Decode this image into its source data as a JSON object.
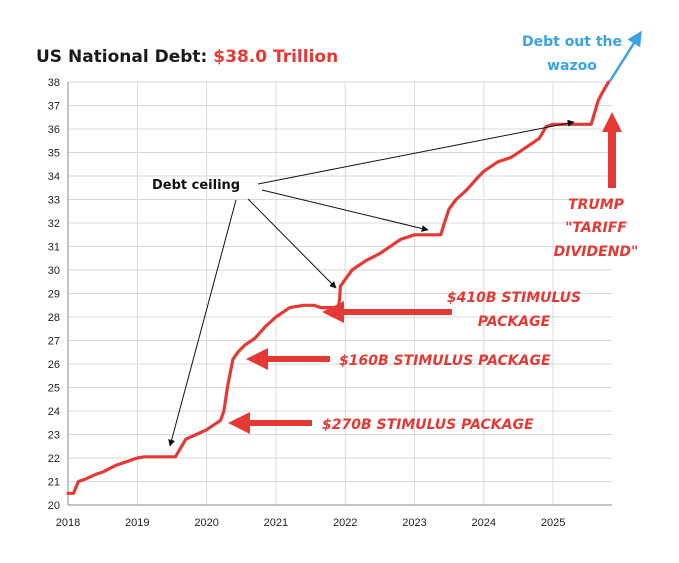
{
  "chart_data": {
    "type": "line",
    "title": "US National Debt: ",
    "title_value": "$38.0 Trillion",
    "xlabel": "",
    "ylabel": "",
    "xlim": [
      2018,
      2025.85
    ],
    "ylim": [
      20,
      38
    ],
    "grid": true,
    "x_ticks": [
      "2018",
      "2019",
      "2020",
      "2021",
      "2022",
      "2023",
      "2024",
      "2025"
    ],
    "y_ticks": [
      "20",
      "21",
      "22",
      "23",
      "24",
      "25",
      "26",
      "27",
      "28",
      "29",
      "30",
      "31",
      "32",
      "33",
      "34",
      "35",
      "36",
      "37",
      "38"
    ],
    "series": [
      {
        "name": "",
        "color": "#e53935",
        "x": [
          2018.0,
          2018.08,
          2018.15,
          2018.25,
          2018.4,
          2018.5,
          2018.7,
          2018.9,
          2019.0,
          2019.1,
          2019.25,
          2019.45,
          2019.55,
          2019.62,
          2019.7,
          2019.85,
          2020.0,
          2020.1,
          2020.2,
          2020.25,
          2020.3,
          2020.38,
          2020.45,
          2020.55,
          2020.7,
          2020.85,
          2021.0,
          2021.2,
          2021.4,
          2021.55,
          2021.65,
          2021.7,
          2021.8,
          2021.9,
          2021.92,
          2021.93,
          2022.0,
          2022.1,
          2022.3,
          2022.5,
          2022.7,
          2022.8,
          2023.0,
          2023.2,
          2023.38,
          2023.42,
          2023.5,
          2023.6,
          2023.75,
          2023.9,
          2024.0,
          2024.2,
          2024.4,
          2024.6,
          2024.8,
          2024.9,
          2025.0,
          2025.1,
          2025.3,
          2025.45,
          2025.55,
          2025.6,
          2025.65,
          2025.72,
          2025.8
        ],
        "values": [
          20.5,
          20.5,
          21.0,
          21.1,
          21.3,
          21.4,
          21.7,
          21.9,
          22.0,
          22.05,
          22.05,
          22.05,
          22.05,
          22.4,
          22.8,
          23.0,
          23.2,
          23.4,
          23.6,
          24.0,
          25.0,
          26.2,
          26.5,
          26.8,
          27.1,
          27.6,
          28.0,
          28.4,
          28.5,
          28.5,
          28.4,
          28.4,
          28.4,
          28.4,
          28.8,
          29.3,
          29.6,
          30.0,
          30.4,
          30.7,
          31.1,
          31.3,
          31.5,
          31.5,
          31.5,
          31.9,
          32.6,
          33.0,
          33.4,
          33.9,
          34.2,
          34.6,
          34.8,
          35.2,
          35.6,
          36.1,
          36.2,
          36.2,
          36.2,
          36.2,
          36.2,
          36.7,
          37.2,
          37.6,
          38.0
        ]
      }
    ],
    "annotations": {
      "debt_ceiling": "Debt ceiling",
      "wazoo_line1": "Debt out the",
      "wazoo_line2": "wazoo",
      "stim_410_line1": "$410B STIMULUS",
      "stim_410_line2": "PACKAGE",
      "stim_160": "$160B STIMULUS PACKAGE",
      "stim_270": "$270B STIMULUS PACKAGE",
      "trump_line1": "TRUMP",
      "trump_line2": "\"TARIFF",
      "trump_line3": "DIVIDEND\""
    }
  }
}
